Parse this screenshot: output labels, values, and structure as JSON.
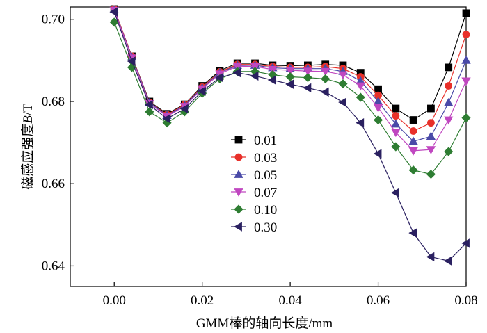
{
  "chart_data": {
    "type": "line",
    "title": "",
    "xlabel": "GMM棒的轴向长度/mm",
    "ylabel": "磁感应强度",
    "ylabel_italic": "B",
    "ylabel_unit": "/T",
    "xlim": [
      -0.01,
      0.08
    ],
    "ylim": [
      0.635,
      0.703
    ],
    "xticks": [
      0.0,
      0.02,
      0.04,
      0.06,
      0.08
    ],
    "xtick_labels": [
      "0.00",
      "0.02",
      "0.04",
      "0.06",
      "0.08"
    ],
    "yticks": [
      0.64,
      0.66,
      0.68,
      0.7
    ],
    "ytick_labels": [
      "0.64",
      "0.66",
      "0.68",
      "0.70"
    ],
    "grid": false,
    "legend_position": "center",
    "x": [
      0.0,
      0.004,
      0.008,
      0.012,
      0.016,
      0.02,
      0.024,
      0.028,
      0.032,
      0.036,
      0.04,
      0.044,
      0.048,
      0.052,
      0.056,
      0.06,
      0.064,
      0.068,
      0.072,
      0.076,
      0.08
    ],
    "series": [
      {
        "name": "0.01",
        "marker": "square",
        "color": "#000000",
        "values": [
          0.7025,
          0.691,
          0.68,
          0.677,
          0.6793,
          0.6838,
          0.6875,
          0.6893,
          0.6893,
          0.6888,
          0.6887,
          0.6888,
          0.689,
          0.6888,
          0.687,
          0.683,
          0.6783,
          0.6755,
          0.6783,
          0.6883,
          0.7015
        ]
      },
      {
        "name": "0.03",
        "marker": "circle",
        "color": "#e8302a",
        "values": [
          0.7025,
          0.691,
          0.6798,
          0.6768,
          0.6792,
          0.6835,
          0.6872,
          0.689,
          0.689,
          0.6885,
          0.6883,
          0.6883,
          0.6885,
          0.688,
          0.686,
          0.6815,
          0.6765,
          0.6728,
          0.6748,
          0.6838,
          0.6963
        ]
      },
      {
        "name": "0.05",
        "marker": "triangle-up",
        "color": "#4a4aa8",
        "values": [
          0.7023,
          0.6908,
          0.6797,
          0.6766,
          0.679,
          0.6833,
          0.687,
          0.6888,
          0.6888,
          0.6882,
          0.688,
          0.688,
          0.688,
          0.6873,
          0.685,
          0.68,
          0.6745,
          0.6703,
          0.6715,
          0.6797,
          0.69
        ]
      },
      {
        "name": "0.07",
        "marker": "triangle-down",
        "color": "#c047c0",
        "values": [
          0.7022,
          0.6906,
          0.6795,
          0.6764,
          0.6788,
          0.6831,
          0.6867,
          0.6886,
          0.6885,
          0.6878,
          0.6876,
          0.6874,
          0.6873,
          0.6865,
          0.6838,
          0.6785,
          0.6725,
          0.668,
          0.6683,
          0.6755,
          0.685
        ]
      },
      {
        "name": "0.10",
        "marker": "diamond",
        "color": "#2e7d32",
        "values": [
          0.6993,
          0.6883,
          0.6775,
          0.6748,
          0.6775,
          0.682,
          0.6855,
          0.6873,
          0.6873,
          0.6865,
          0.686,
          0.6858,
          0.6855,
          0.6843,
          0.681,
          0.6755,
          0.669,
          0.6633,
          0.6623,
          0.6678,
          0.676
        ]
      },
      {
        "name": "0.30",
        "marker": "triangle-left",
        "color": "#2a2060",
        "values": [
          0.7018,
          0.6898,
          0.6792,
          0.6758,
          0.6782,
          0.6825,
          0.6858,
          0.687,
          0.6862,
          0.6852,
          0.6842,
          0.6833,
          0.6823,
          0.6798,
          0.6748,
          0.6673,
          0.6578,
          0.648,
          0.6422,
          0.6412,
          0.6455
        ]
      }
    ]
  }
}
